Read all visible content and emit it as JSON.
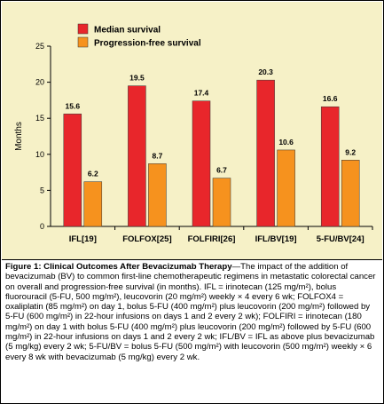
{
  "chart_data": {
    "type": "bar",
    "categories": [
      "IFL[19]",
      "FOLFOX[25]",
      "FOLFIRI[26]",
      "IFL/BV[19]",
      "5-FU/BV[24]"
    ],
    "series": [
      {
        "name": "Median survival",
        "color": "#e8262b",
        "values": [
          15.6,
          19.5,
          17.4,
          20.3,
          16.6
        ],
        "labels": [
          "15.6",
          "19.5",
          "17.4",
          "20.3",
          "16.6"
        ]
      },
      {
        "name": "Progression-free survival",
        "color": "#f6921e",
        "values": [
          6.2,
          8.7,
          6.7,
          10.6,
          9.2
        ],
        "labels": [
          "6.2",
          "8.7",
          "6.7",
          "10.6",
          "9.2"
        ]
      }
    ],
    "ylabel": "Months",
    "ylim": [
      0,
      25
    ],
    "yticks": [
      "0",
      "5",
      "10",
      "15",
      "20",
      "25"
    ],
    "legend_position": "top-left",
    "grid": false,
    "background_color": "#f6f1c7"
  },
  "caption": {
    "title": "Figure 1: Clinical Outcomes After Bevacizumab Therapy",
    "body": "—The impact of the addition of bevacizumab (BV) to common first-line chemotherapeutic regimens in metastatic colorectal cancer on overall and progression-free survival (in months). IFL = irinotecan (125 mg/m²), bolus fluorouracil (5-FU, 500 mg/m²), leucovorin (20 mg/m²) weekly × 4 every 6 wk; FOLFOX4 = oxaliplatin (85 mg/m²) on day 1, bolus 5-FU (400 mg/m²) plus leucovorin (200 mg/m²) followed by 5-FU (600 mg/m²) in 22-hour infusions on days 1 and 2 every 2 wk); FOLFIRI = irinotecan (180 mg/m²) on day 1 with bolus 5-FU (400 mg/m²) plus leucovorin (200 mg/m²) followed by 5-FU (600 mg/m²) in 22-hour infusions on days 1 and 2 every 2 wk; IFL/BV = IFL as above plus bevacizumab (5 mg/kg) every 2 wk; 5-FU/BV = bolus 5-FU (500 mg/m²) with leucovorin (500 mg/m²) weekly × 6 every 8 wk with bevacizumab (5 mg/kg) every 2 wk."
  }
}
